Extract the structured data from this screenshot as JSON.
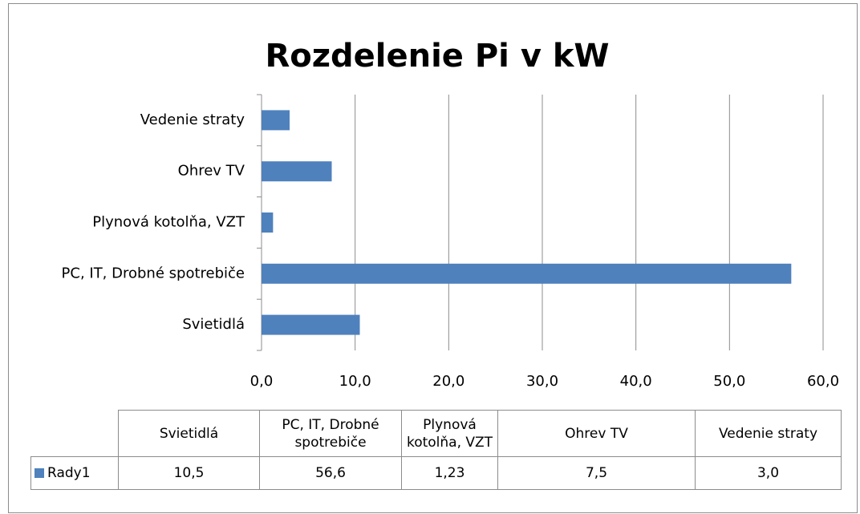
{
  "chart_data": {
    "type": "bar",
    "horizontal": true,
    "title": "Rozdelenie Pi v kW",
    "categories": [
      "Svietidlá",
      "PC, IT, Drobné spotrebiče",
      "Plynová kotolňa, VZT",
      "Ohrev TV",
      "Vedenie straty"
    ],
    "series": [
      {
        "name": "Rady1",
        "color": "#4f81bd",
        "values": [
          10.5,
          56.6,
          1.23,
          7.5,
          3.0
        ],
        "value_labels": [
          "10,5",
          "56,6",
          "1,23",
          "7,5",
          "3,0"
        ]
      }
    ],
    "xlim": [
      0,
      60
    ],
    "xticks": [
      {
        "value": 0,
        "label": "0,0"
      },
      {
        "value": 10,
        "label": "10,0"
      },
      {
        "value": 20,
        "label": "20,0"
      },
      {
        "value": 30,
        "label": "30,0"
      },
      {
        "value": 40,
        "label": "40,0"
      },
      {
        "value": 50,
        "label": "50,0"
      },
      {
        "value": 60,
        "label": "60,0"
      }
    ],
    "grid": true,
    "data_table": true
  }
}
